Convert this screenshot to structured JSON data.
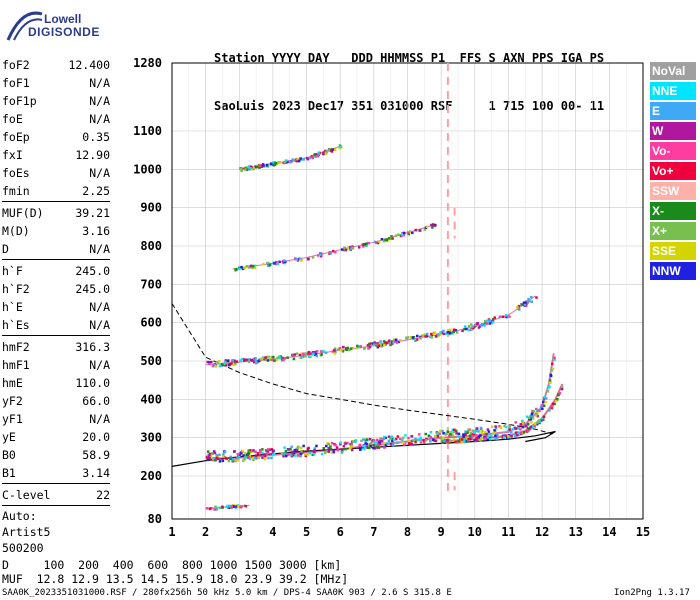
{
  "logo": {
    "line1": "Lowell",
    "line2": "DIGISONDE"
  },
  "header": {
    "line1": "Station YYYY DAY   DDD HHMMSS P1  FFS S AXN PPS IGA PS",
    "line2": "SaoLuis 2023 Dec17 351 031000 RSF     1 715 100 00- 11"
  },
  "params": [
    {
      "k": "foF2",
      "v": "12.400"
    },
    {
      "k": "foF1",
      "v": "N/A"
    },
    {
      "k": "foF1p",
      "v": "N/A"
    },
    {
      "k": "foE",
      "v": "N/A"
    },
    {
      "k": "foEp",
      "v": "0.35"
    },
    {
      "k": "fxI",
      "v": "12.90"
    },
    {
      "k": "foEs",
      "v": "N/A"
    },
    {
      "k": "fmin",
      "v": "2.25"
    },
    {
      "k": "MUF(D)",
      "v": "39.21"
    },
    {
      "k": "M(D)",
      "v": "3.16"
    },
    {
      "k": "D",
      "v": "N/A"
    },
    {
      "k": "h`F",
      "v": "245.0"
    },
    {
      "k": "h`F2",
      "v": "245.0"
    },
    {
      "k": "h`E",
      "v": "N/A"
    },
    {
      "k": "h`Es",
      "v": "N/A"
    },
    {
      "k": "hmF2",
      "v": "316.3"
    },
    {
      "k": "hmF1",
      "v": "N/A"
    },
    {
      "k": "hmE",
      "v": "110.0"
    },
    {
      "k": "yF2",
      "v": "66.0"
    },
    {
      "k": "yF1",
      "v": "N/A"
    },
    {
      "k": "yE",
      "v": "20.0"
    },
    {
      "k": "B0",
      "v": "58.9"
    },
    {
      "k": "B1",
      "v": "3.14"
    },
    {
      "k": "C-level",
      "v": "22"
    }
  ],
  "autoscale": {
    "l1": "Auto:",
    "l2": "Artist5",
    "l3": "500200"
  },
  "legend": [
    {
      "label": "NoVal",
      "color": "#a0a0a0"
    },
    {
      "label": "NNE",
      "color": "#00e5ff"
    },
    {
      "label": "E",
      "color": "#3fa9f5"
    },
    {
      "label": "W",
      "color": "#b0179e"
    },
    {
      "label": "Vo-",
      "color": "#ff3ca0"
    },
    {
      "label": "Vo+",
      "color": "#f0003c"
    },
    {
      "label": "SSW",
      "color": "#ffb0a8"
    },
    {
      "label": "X-",
      "color": "#1a8a1a"
    },
    {
      "label": "X+",
      "color": "#77c050"
    },
    {
      "label": "SSE",
      "color": "#d4d400"
    },
    {
      "label": "NNW",
      "color": "#2020e0"
    }
  ],
  "bottom": {
    "d_line": "D     100  200  400  600  800 1000 1500 3000 [km]",
    "muf_line": "MUF  12.8 12.9 13.5 14.5 15.9 18.0 23.9 39.2 [MHz]"
  },
  "footer": {
    "left": "SAA0K_2023351031000.RSF / 280fx256h 50 kHz 5.0 km / DPS-4 SAA0K 903 / 2.6 S 315.8 E",
    "right": "Ion2Png 1.3.17"
  },
  "chart_data": {
    "type": "scatter",
    "xlim": [
      1,
      15
    ],
    "ylim": [
      80,
      1280
    ],
    "x_ticks": [
      "1",
      "2",
      "3",
      "4",
      "5",
      "6",
      "7",
      "8",
      "9",
      "10",
      "11",
      "12",
      "13",
      "14",
      "15"
    ],
    "y_ticks": [
      "80",
      "200",
      "300",
      "400",
      "500",
      "600",
      "700",
      "800",
      "900",
      "1000",
      "1100",
      "1280"
    ],
    "traces": [
      {
        "name": "O-trace 1st hop",
        "x": [
          2.0,
          3,
          4,
          5,
          6,
          7,
          8,
          9,
          10,
          11,
          11.5,
          12,
          12.2,
          12.35
        ],
        "y": [
          245,
          248,
          255,
          262,
          270,
          280,
          290,
          300,
          305,
          315,
          335,
          380,
          440,
          520
        ]
      },
      {
        "name": "X-trace 1st hop",
        "x": [
          9,
          10,
          11,
          11.5,
          12,
          12.4,
          12.6
        ],
        "y": [
          290,
          296,
          305,
          318,
          350,
          400,
          440
        ]
      },
      {
        "name": "2nd hop",
        "x": [
          2.0,
          3,
          4,
          5,
          6,
          7,
          8,
          9,
          10,
          11,
          11.5,
          11.8
        ],
        "y": [
          490,
          497,
          505,
          515,
          528,
          540,
          555,
          570,
          590,
          620,
          650,
          670
        ]
      },
      {
        "name": "3rd hop",
        "x": [
          2.8,
          4,
          5,
          6,
          7,
          8,
          8.8
        ],
        "y": [
          740,
          755,
          770,
          790,
          810,
          835,
          855
        ]
      },
      {
        "name": "4th hop",
        "x": [
          3,
          4,
          5,
          6
        ],
        "y": [
          1000,
          1015,
          1030,
          1060
        ]
      },
      {
        "name": "low echoes",
        "x": [
          2,
          2.4,
          2.8,
          3.3
        ],
        "y": [
          110,
          112,
          115,
          118
        ]
      }
    ],
    "profile_curves": {
      "dashed": {
        "x": [
          1,
          2,
          3,
          4,
          5,
          6,
          7,
          8,
          9,
          10,
          11,
          11.8,
          12.3
        ],
        "y": [
          650,
          510,
          470,
          440,
          415,
          400,
          385,
          372,
          360,
          348,
          335,
          322,
          310
        ]
      },
      "solid": {
        "x": [
          1,
          2,
          3,
          4,
          5,
          6,
          7,
          8,
          9,
          10,
          11,
          11.8,
          12.4,
          12.1,
          11.5
        ],
        "y": [
          225,
          240,
          250,
          258,
          265,
          270,
          275,
          280,
          285,
          290,
          296,
          305,
          316,
          300,
          290
        ]
      }
    },
    "frequency_markers": [
      {
        "x": 9.2,
        "ymin": 150,
        "ymax": 1280,
        "style": "dashed"
      },
      {
        "x": 9.4,
        "ymin": 820,
        "ymax": 900,
        "style": "dashed"
      },
      {
        "x": 9.4,
        "ymin": 160,
        "ymax": 210,
        "style": "dashed"
      }
    ]
  }
}
